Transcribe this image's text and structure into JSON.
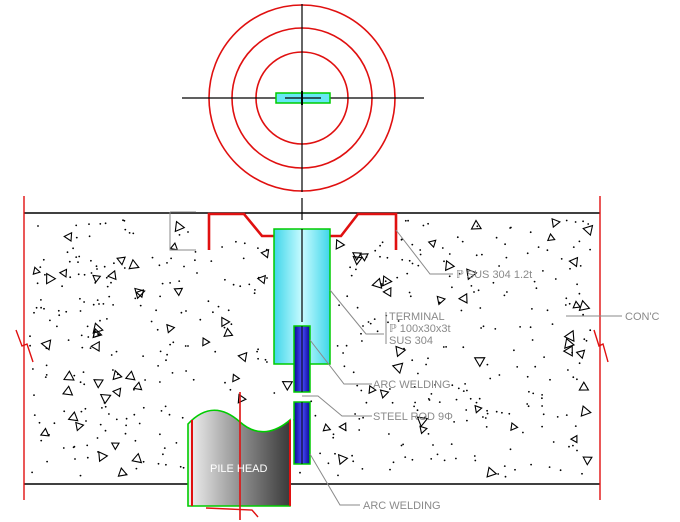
{
  "labels": {
    "plate": "ℙ SUS 304 1.2t",
    "con": "CON'C",
    "terminal_title": "TERMINAL",
    "terminal_size": "ℙ 100x30x3t",
    "terminal_material": "SUS 304",
    "arc_welding_upper": "ARC WELDING",
    "steel_rod": "STEEL ROD 9Φ",
    "arc_welding_lower": "ARC WELDING",
    "pile_head": "PILE HEAD"
  },
  "colors": {
    "circles": "#e01010",
    "cap_plate": "#e01010",
    "terminal_fill": "#66e8f5",
    "terminal_outline": "#00cc00",
    "rod_fill": "#1a1ad0",
    "leader": "#8a8a8a",
    "concrete_edge": "#000000",
    "pile_dark": "#555555"
  }
}
